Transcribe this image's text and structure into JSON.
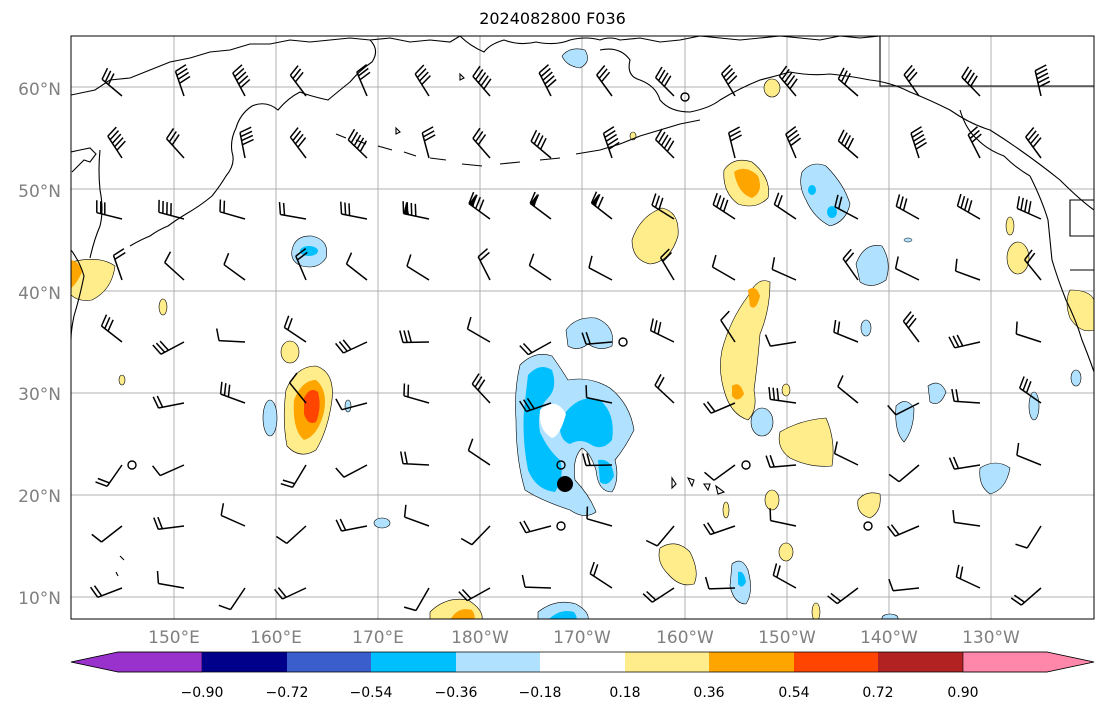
{
  "title": "2024082800 F036",
  "lat_labels": [
    "60°N",
    "50°N",
    "40°N",
    "30°N",
    "20°N",
    "10°N"
  ],
  "lon_labels": [
    "150°E",
    "160°E",
    "170°E",
    "180°W",
    "170°W",
    "160°W",
    "150°W",
    "140°W",
    "130°W"
  ],
  "colorbar": {
    "ticks": [
      "−0.90",
      "−0.72",
      "−0.54",
      "−0.36",
      "−0.18",
      "0.18",
      "0.36",
      "0.54",
      "0.72",
      "0.90"
    ],
    "colors": [
      "#9932cc",
      "#00008b",
      "#3a5fcd",
      "#00bfff",
      "#b0e2ff",
      "#ffffff",
      "#ffec8b",
      "#ffa500",
      "#ff4500",
      "#b22222",
      "#ff88aa"
    ]
  },
  "shading_colors": {
    "light_blue": "#b0e2ff",
    "blue": "#00bfff",
    "light_yellow": "#ffec8b",
    "orange": "#ffa500",
    "red_orange": "#ff4500"
  }
}
